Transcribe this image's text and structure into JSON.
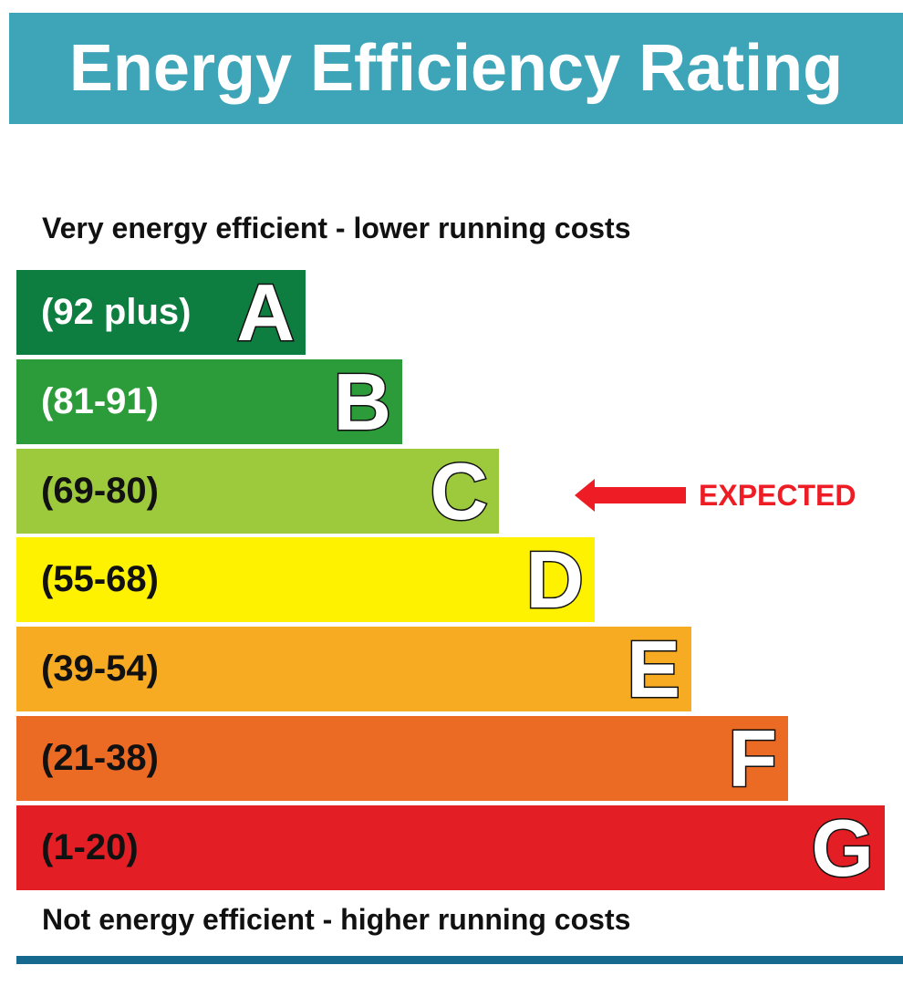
{
  "title": "Energy Efficiency Rating",
  "top_caption": "Very energy efficient - lower running costs",
  "bottom_caption": "Not energy efficient - higher running costs",
  "marker": {
    "label": "EXPECTED",
    "points_to_band": "C",
    "color": "#ee1c24"
  },
  "colors": {
    "header": "#3ea4b8",
    "footer_rule": "#15698f"
  },
  "chart_data": {
    "type": "bar",
    "orientation": "horizontal",
    "title": "Energy Efficiency Rating",
    "categories": [
      "A",
      "B",
      "C",
      "D",
      "E",
      "F",
      "G"
    ],
    "ranges": [
      "(92 plus)",
      "(81-91)",
      "(69-80)",
      "(55-68)",
      "(39-54)",
      "(21-38)",
      "(1-20)"
    ],
    "colors": [
      "#0e7d40",
      "#2c9b3a",
      "#9dc93d",
      "#fff200",
      "#f6ab23",
      "#eb6a24",
      "#e31e25"
    ],
    "range_text_colors": [
      "#ffffff",
      "#ffffff",
      "#111111",
      "#111111",
      "#111111",
      "#111111",
      "#111111"
    ],
    "relative_length": [
      1,
      2,
      3,
      4,
      5,
      6,
      7
    ],
    "highlight": "C"
  }
}
